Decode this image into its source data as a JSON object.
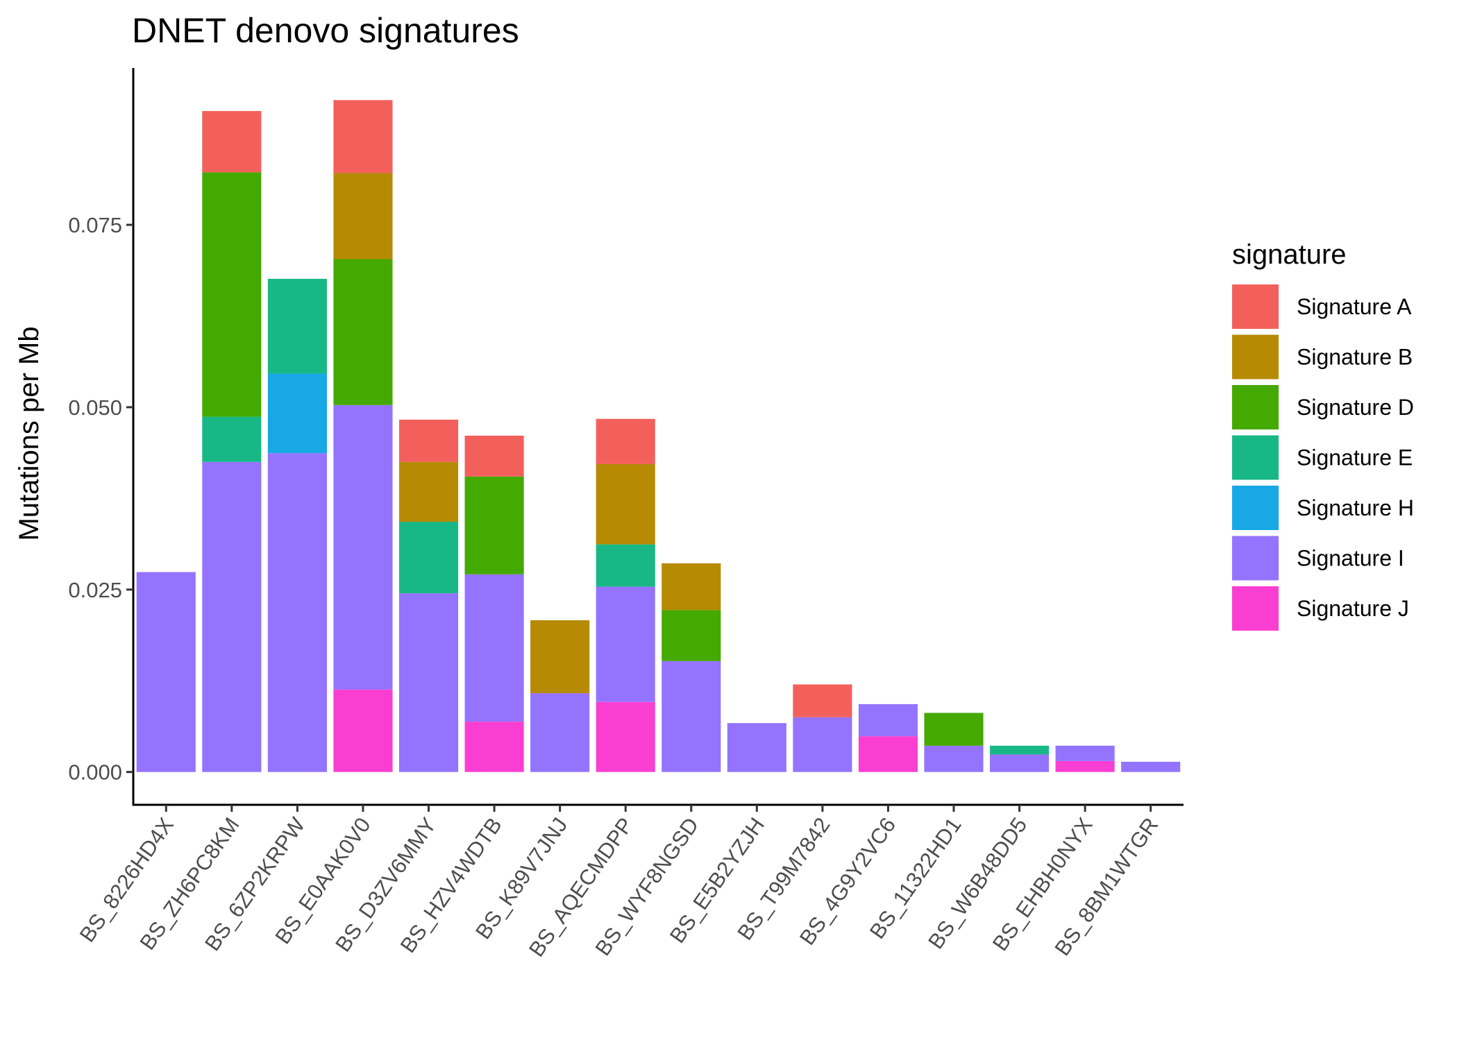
{
  "chart_data": {
    "type": "bar",
    "stacked": true,
    "title": "DNET denovo signatures",
    "xlabel": "",
    "ylabel": "Mutations per Mb",
    "ylim": [
      -0.0045,
      0.0965
    ],
    "yticks": [
      0.0,
      0.025,
      0.05,
      0.075
    ],
    "ytick_labels": [
      "0.000",
      "0.025",
      "0.050",
      "0.075"
    ],
    "grid": false,
    "legend": {
      "title": "signature",
      "position": "right"
    },
    "categories": [
      "BS_8226HD4X",
      "BS_ZH6PC8KM",
      "BS_6ZP2KRPW",
      "BS_E0AAK0V0",
      "BS_D3ZV6MMY",
      "BS_HZV4WDTB",
      "BS_K89V7JNJ",
      "BS_AQECMDPP",
      "BS_WYF8NGSD",
      "BS_E5B2YZJH",
      "BS_T99M7842",
      "BS_4G9Y2VC6",
      "BS_11322HD1",
      "BS_W6B48DD5",
      "BS_EHBH0NYX",
      "BS_8BM1WTGR"
    ],
    "series": [
      {
        "name": "Signature J",
        "color": "#FB3ED2",
        "values": [
          0,
          0,
          0,
          0.0113,
          0,
          0.0069,
          0,
          0.0096,
          0,
          0,
          0,
          0.0049,
          0,
          0,
          0.0015,
          0
        ]
      },
      {
        "name": "Signature I",
        "color": "#9473FF",
        "values": [
          0.0274,
          0.0425,
          0.0437,
          0.039,
          0.0245,
          0.0202,
          0.0108,
          0.0158,
          0.0152,
          0.0067,
          0.0075,
          0.0044,
          0.0036,
          0.0024,
          0.0021,
          0.0014
        ]
      },
      {
        "name": "Signature H",
        "color": "#18A8E6",
        "values": [
          0,
          0,
          0.0109,
          0,
          0,
          0,
          0,
          0,
          0,
          0,
          0,
          0,
          0,
          0,
          0,
          0
        ]
      },
      {
        "name": "Signature E",
        "color": "#18B886",
        "values": [
          0,
          0.0062,
          0.013,
          0,
          0.0098,
          0,
          0,
          0.0058,
          0,
          0,
          0,
          0,
          0,
          0.0012,
          0,
          0
        ]
      },
      {
        "name": "Signature D",
        "color": "#44A900",
        "values": [
          0,
          0.0335,
          0,
          0.02,
          0,
          0.0134,
          0,
          0,
          0.007,
          0,
          0,
          0,
          0.0045,
          0,
          0,
          0
        ]
      },
      {
        "name": "Signature B",
        "color": "#B68A03",
        "values": [
          0,
          0,
          0,
          0.0118,
          0.0082,
          0,
          0.01,
          0.011,
          0.0064,
          0,
          0,
          0,
          0,
          0,
          0,
          0
        ]
      },
      {
        "name": "Signature A",
        "color": "#F3605C",
        "values": [
          0,
          0.0084,
          0,
          0.01,
          0.0058,
          0.0056,
          0,
          0.0062,
          0,
          0,
          0.0045,
          0,
          0,
          0,
          0,
          0
        ]
      }
    ],
    "legend_order": [
      "Signature A",
      "Signature B",
      "Signature D",
      "Signature E",
      "Signature H",
      "Signature I",
      "Signature J"
    ]
  }
}
